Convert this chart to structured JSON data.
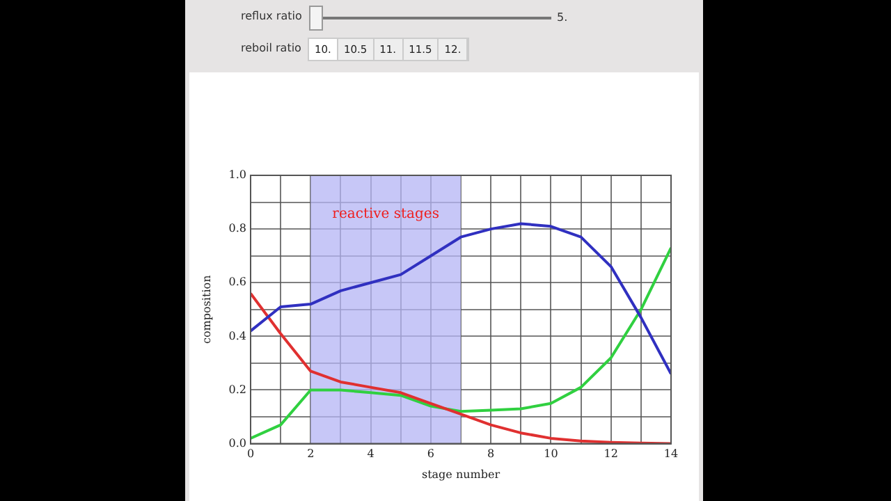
{
  "chart_data": {
    "type": "line",
    "xlabel": "stage number",
    "ylabel": "composition",
    "x": [
      0,
      1,
      2,
      3,
      4,
      5,
      6,
      7,
      8,
      9,
      10,
      11,
      12,
      13,
      14
    ],
    "series": [
      {
        "color": "#3030c0",
        "values": [
          0.42,
          0.51,
          0.52,
          0.57,
          0.6,
          0.63,
          0.7,
          0.77,
          0.8,
          0.82,
          0.81,
          0.77,
          0.66,
          0.47,
          0.26
        ]
      },
      {
        "color": "#e03030",
        "values": [
          0.56,
          0.41,
          0.27,
          0.23,
          0.21,
          0.19,
          0.15,
          0.11,
          0.07,
          0.04,
          0.02,
          0.01,
          0.005,
          0.002,
          0
        ]
      },
      {
        "color": "#30d040",
        "values": [
          0.02,
          0.07,
          0.2,
          0.2,
          0.19,
          0.18,
          0.14,
          0.12,
          0.125,
          0.13,
          0.15,
          0.21,
          0.32,
          0.5,
          0.73
        ]
      }
    ],
    "xlim": [
      0,
      14
    ],
    "xticks": [
      0,
      {
        "value": 1,
        "label": null
      },
      2,
      {
        "value": 3,
        "label": null
      },
      4,
      {
        "value": 5,
        "label": null
      },
      6,
      {
        "value": 7,
        "label": null
      },
      8,
      {
        "value": 9,
        "label": null
      },
      10,
      {
        "value": 11,
        "label": null
      },
      12,
      {
        "value": 13,
        "label": null
      },
      14
    ],
    "ylim": [
      0,
      1
    ],
    "yticks": [
      {
        "value": 0,
        "label": "0.0"
      },
      {
        "value": 0.1,
        "label": null
      },
      {
        "value": 0.2,
        "label": "0.2"
      },
      {
        "value": 0.3,
        "label": null
      },
      {
        "value": 0.4,
        "label": "0.4"
      },
      {
        "value": 0.5,
        "label": null
      },
      {
        "value": 0.6,
        "label": "0.6"
      },
      {
        "value": 0.7,
        "label": null
      },
      {
        "value": 0.8,
        "label": "0.8"
      },
      {
        "value": 0.9,
        "label": null
      },
      {
        "value": 1,
        "label": "1.0"
      }
    ],
    "bands": [
      {
        "axis": "x",
        "from": 2,
        "to": 7,
        "label": "reactive stages",
        "color": "#b4b4f4"
      }
    ],
    "grid": true,
    "legend": false,
    "marker": "none",
    "line_style": "solid",
    "annotations": [
      "reflux ratio",
      "5.",
      "reboil ratio",
      "10.",
      "10.5",
      "11.",
      "11.5",
      "12."
    ]
  }
}
